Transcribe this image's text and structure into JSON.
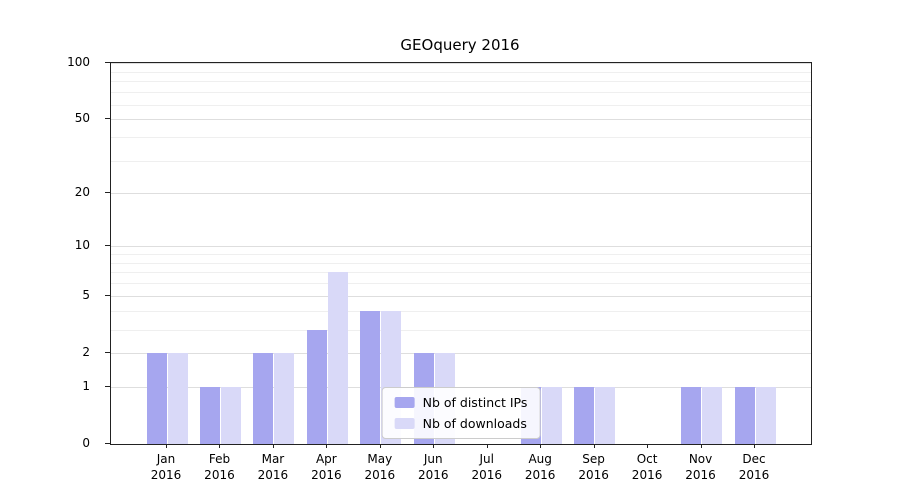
{
  "chart_data": {
    "type": "bar",
    "title": "GEOquery 2016",
    "categories": [
      "Jan 2016",
      "Feb 2016",
      "Mar 2016",
      "Apr 2016",
      "May 2016",
      "Jun 2016",
      "Jul 2016",
      "Aug 2016",
      "Sep 2016",
      "Oct 2016",
      "Nov 2016",
      "Dec 2016"
    ],
    "series": [
      {
        "name": "Nb of distinct IPs",
        "color": "#a6a6ef",
        "values": [
          2,
          1,
          2,
          3,
          4,
          2,
          0,
          1,
          1,
          0,
          1,
          1
        ]
      },
      {
        "name": "Nb of downloads",
        "color": "#d9d9f8",
        "values": [
          2,
          1,
          2,
          7,
          4,
          2,
          0,
          1,
          1,
          0,
          1,
          1
        ]
      }
    ],
    "yticks": [
      0,
      1,
      2,
      5,
      10,
      20,
      50,
      100
    ],
    "minor_gridlines": [
      3,
      4,
      6,
      7,
      8,
      9,
      30,
      40,
      60,
      70,
      80,
      90
    ],
    "ylim": [
      0,
      100
    ],
    "scale": "log1p",
    "xlabel": "",
    "ylabel": "",
    "grid": true,
    "legend_position": "lower center"
  }
}
